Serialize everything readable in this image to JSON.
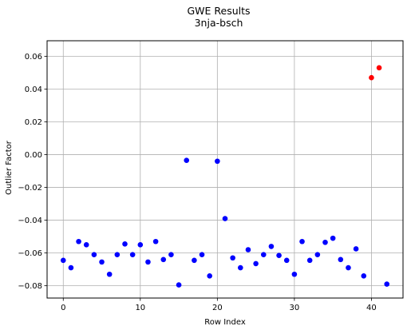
{
  "chart_data": {
    "type": "scatter",
    "title": "GWE Results",
    "subtitle": "3nja-bsch",
    "xlabel": "Row Index",
    "ylabel": "Outlier Factor",
    "xlim": [
      -2.1,
      44.1
    ],
    "ylim": [
      -0.0875,
      0.0695
    ],
    "xticks": [
      0,
      10,
      20,
      30,
      40
    ],
    "xtick_labels": [
      "0",
      "10",
      "20",
      "30",
      "40"
    ],
    "yticks": [
      -0.08,
      -0.06,
      -0.04,
      -0.02,
      0.0,
      0.02,
      0.04,
      0.06
    ],
    "ytick_labels": [
      "−0.08",
      "−0.06",
      "−0.04",
      "−0.02",
      "0.00",
      "0.02",
      "0.04",
      "0.06"
    ],
    "grid": true,
    "colors": {
      "normal": "#0000ff",
      "outlier": "#ff0000",
      "grid": "#b0b0b0",
      "axis": "#000000"
    },
    "x": [
      0,
      1,
      2,
      3,
      4,
      5,
      6,
      7,
      8,
      9,
      10,
      11,
      12,
      13,
      14,
      15,
      16,
      17,
      18,
      19,
      20,
      21,
      22,
      23,
      24,
      25,
      26,
      27,
      28,
      29,
      30,
      31,
      32,
      33,
      34,
      35,
      36,
      37,
      38,
      39,
      40,
      41,
      42
    ],
    "y": [
      -0.0645,
      -0.069,
      -0.053,
      -0.055,
      -0.061,
      -0.0655,
      -0.073,
      -0.061,
      -0.0545,
      -0.061,
      -0.055,
      -0.0655,
      -0.053,
      -0.064,
      -0.061,
      -0.0795,
      -0.0035,
      -0.0645,
      -0.061,
      -0.074,
      -0.004,
      -0.039,
      -0.063,
      -0.069,
      -0.058,
      -0.0665,
      -0.061,
      -0.056,
      -0.0615,
      -0.0645,
      -0.073,
      -0.053,
      -0.0645,
      -0.061,
      -0.0535,
      -0.051,
      -0.064,
      -0.069,
      -0.0575,
      -0.074,
      0.047,
      0.053,
      -0.079
    ],
    "outlier": [
      false,
      false,
      false,
      false,
      false,
      false,
      false,
      false,
      false,
      false,
      false,
      false,
      false,
      false,
      false,
      false,
      false,
      false,
      false,
      false,
      false,
      false,
      false,
      false,
      false,
      false,
      false,
      false,
      false,
      false,
      false,
      false,
      false,
      false,
      false,
      false,
      false,
      false,
      false,
      false,
      true,
      true,
      false
    ]
  }
}
